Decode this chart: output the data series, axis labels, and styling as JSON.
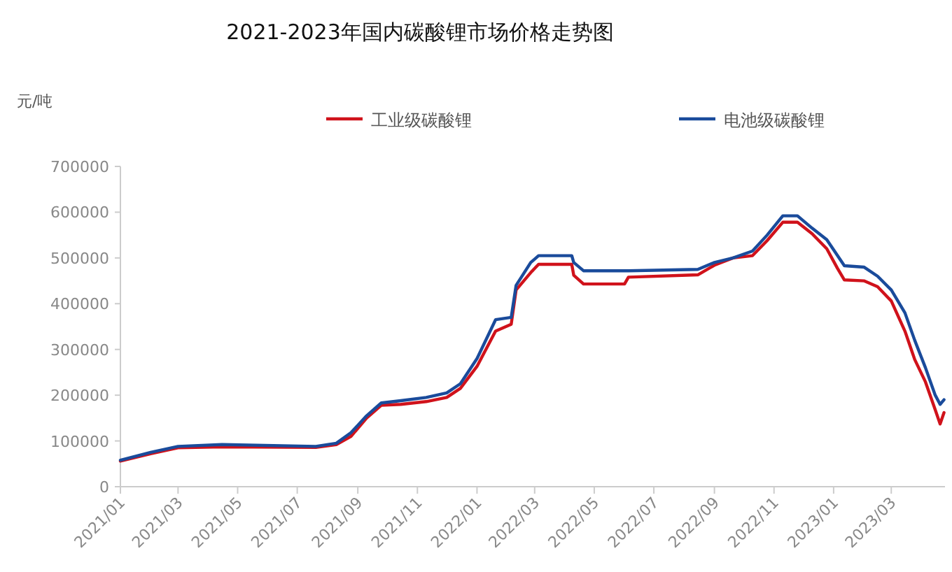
{
  "chart_data": {
    "type": "line",
    "title": "2021-2023年国内碳酸锂市场价格走势图",
    "ylabel": "元/吨",
    "legend": "top",
    "marker": "none",
    "line_style": "solid",
    "xlim": [
      "2021-01-01",
      "2023-04-25"
    ],
    "ylim": [
      0,
      700000
    ],
    "yticks": [
      0,
      100000,
      200000,
      300000,
      400000,
      500000,
      600000,
      700000
    ],
    "xticks": [
      {
        "value": "2021-01-01",
        "label": "2021/01"
      },
      {
        "value": "2021-03-01",
        "label": "2021/03"
      },
      {
        "value": "2021-05-01",
        "label": "2021/05"
      },
      {
        "value": "2021-07-01",
        "label": "2021/07"
      },
      {
        "value": "2021-09-01",
        "label": "2021/09"
      },
      {
        "value": "2021-11-01",
        "label": "2021/11"
      },
      {
        "value": "2022-01-01",
        "label": "2022/01"
      },
      {
        "value": "2022-03-01",
        "label": "2022/03"
      },
      {
        "value": "2022-05-01",
        "label": "2022/05"
      },
      {
        "value": "2022-07-01",
        "label": "2022/07"
      },
      {
        "value": "2022-09-01",
        "label": "2022/09"
      },
      {
        "value": "2022-11-01",
        "label": "2022/11"
      },
      {
        "value": "2023-01-01",
        "label": "2023/01"
      },
      {
        "value": "2023-03-01",
        "label": "2023/03"
      }
    ],
    "x": [
      "2021-01-01",
      "2021-02-01",
      "2021-03-01",
      "2021-04-15",
      "2021-07-20",
      "2021-08-10",
      "2021-08-25",
      "2021-09-10",
      "2021-09-25",
      "2021-10-15",
      "2021-11-10",
      "2021-12-01",
      "2021-12-15",
      "2022-01-01",
      "2022-01-20",
      "2022-02-05",
      "2022-02-10",
      "2022-02-25",
      "2022-03-05",
      "2022-04-08",
      "2022-04-10",
      "2022-04-20",
      "2022-06-01",
      "2022-06-05",
      "2022-08-15",
      "2022-09-01",
      "2022-09-20",
      "2022-10-10",
      "2022-10-25",
      "2022-11-10",
      "2022-11-25",
      "2022-12-10",
      "2022-12-25",
      "2023-01-05",
      "2023-01-12",
      "2023-02-01",
      "2023-02-15",
      "2023-03-01",
      "2023-03-15",
      "2023-03-25",
      "2023-04-05",
      "2023-04-15",
      "2023-04-20",
      "2023-04-24"
    ],
    "series": [
      {
        "name": "工业级碳酸锂",
        "color": "#d0121b",
        "values": [
          56000,
          72000,
          85000,
          87000,
          86000,
          92000,
          110000,
          150000,
          178000,
          180000,
          186000,
          195000,
          215000,
          263000,
          340000,
          355000,
          430000,
          468000,
          486000,
          486000,
          462000,
          443000,
          443000,
          458000,
          463000,
          484000,
          500000,
          505000,
          538000,
          578000,
          578000,
          553000,
          520000,
          477000,
          452000,
          450000,
          437000,
          406000,
          340000,
          278000,
          229000,
          168000,
          137000,
          162000
        ]
      },
      {
        "name": "电池级碳酸锂",
        "color": "#1a4b9b",
        "values": [
          58000,
          75000,
          88000,
          92000,
          88000,
          95000,
          118000,
          155000,
          183000,
          188000,
          195000,
          205000,
          225000,
          280000,
          365000,
          370000,
          440000,
          490000,
          505000,
          505000,
          490000,
          472000,
          472000,
          472000,
          475000,
          490000,
          500000,
          515000,
          550000,
          592000,
          592000,
          565000,
          540000,
          505000,
          483000,
          480000,
          460000,
          430000,
          380000,
          320000,
          260000,
          200000,
          180000,
          190000
        ]
      }
    ]
  }
}
